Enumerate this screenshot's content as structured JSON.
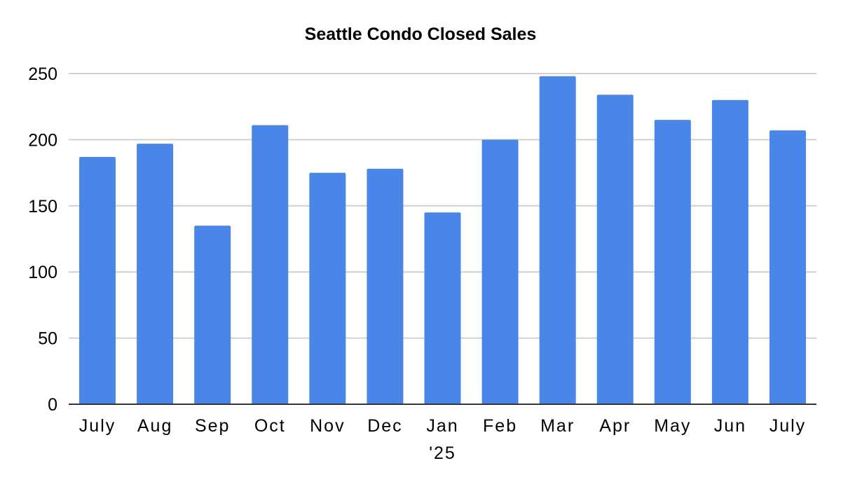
{
  "chart_data": {
    "type": "bar",
    "title": "Seattle Condo Closed Sales",
    "xlabel": "",
    "ylabel": "",
    "categories": [
      "July",
      "Aug",
      "Sep",
      "Oct",
      "Nov",
      "Dec",
      "Jan\n'25",
      "Feb",
      "Mar",
      "Apr",
      "May",
      "Jun",
      "July"
    ],
    "values": [
      187,
      197,
      135,
      211,
      175,
      178,
      145,
      200,
      248,
      234,
      215,
      230,
      207
    ],
    "ylim": [
      0,
      250
    ],
    "yticks": [
      0,
      50,
      100,
      150,
      200,
      250
    ],
    "grid": true,
    "legend": "none",
    "bar_color": "#4a86e8"
  }
}
